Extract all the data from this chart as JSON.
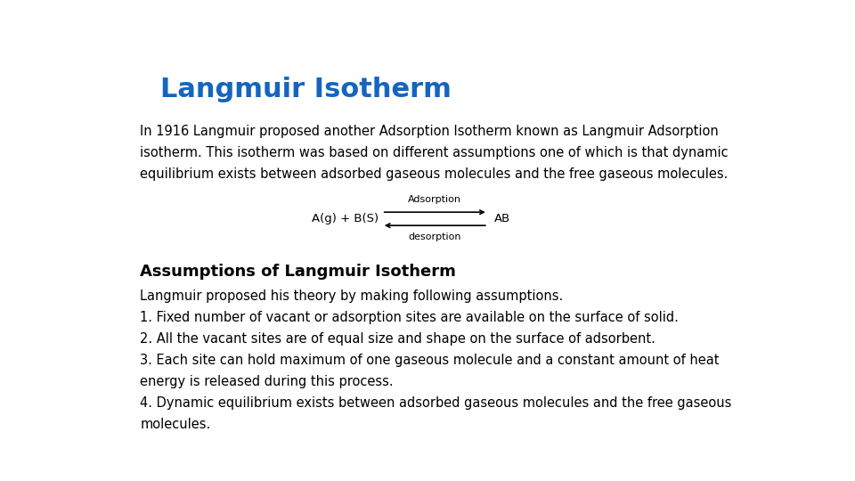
{
  "title": "Langmuir Isotherm",
  "title_color": "#1565C0",
  "title_fontsize": 22,
  "background_color": "#ffffff",
  "intro_lines": [
    "In 1916 Langmuir proposed another Adsorption Isotherm known as Langmuir Adsorption",
    "isotherm. This isotherm was based on different assumptions one of which is that dynamic",
    "equilibrium exists between adsorbed gaseous molecules and the free gaseous molecules."
  ],
  "intro_fontsize": 10.5,
  "eq_left": "A(g) + B(S)",
  "eq_right": "AB",
  "eq_above": "Adsorption",
  "eq_below": "desorption",
  "eq_fontsize": 9.5,
  "section_title": "Assumptions of Langmuir Isotherm",
  "section_title_fontsize": 13,
  "body_fontsize": 10.5,
  "body_intro": "Langmuir proposed his theory by making following assumptions.",
  "assumption1": "1. Fixed number of vacant or adsorption sites are available on the surface of solid.",
  "assumption2": "2. All the vacant sites are of equal size and shape on the surface of adsorbent.",
  "assumption3a": "3. Each site can hold maximum of one gaseous molecule and a constant amount of heat",
  "assumption3b": "energy is released during this process.",
  "assumption4a": "4. Dynamic equilibrium exists between adsorbed gaseous molecules and the free gaseous",
  "assumption4b": "molecules."
}
